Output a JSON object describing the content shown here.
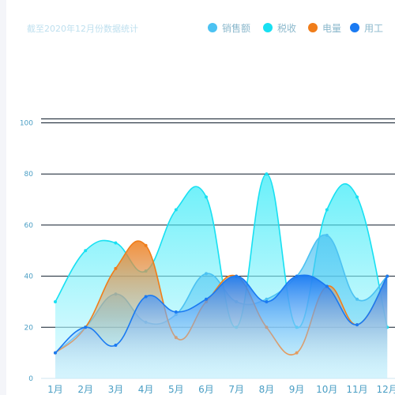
{
  "chart_data": {
    "type": "area",
    "subtitle": "截至2020年12月份数据统计",
    "categories": [
      "1月",
      "2月",
      "3月",
      "4月",
      "5月",
      "6月",
      "7月",
      "8月",
      "9月",
      "10月",
      "11月",
      "12月"
    ],
    "ylim": [
      0,
      100
    ],
    "yticks": [
      0,
      20,
      40,
      60,
      80,
      100
    ],
    "grid": true,
    "legend_position": "top-right",
    "series": [
      {
        "name": "销售额",
        "color": "#4cc2f2",
        "values": [
          10,
          20,
          33,
          22,
          25,
          41,
          30,
          31,
          40,
          56,
          31,
          40
        ]
      },
      {
        "name": "税收",
        "color": "#18e0f2",
        "values": [
          30,
          50,
          53,
          42,
          66,
          71,
          20,
          80,
          20,
          66,
          71,
          20
        ]
      },
      {
        "name": "电量",
        "color": "#f07d1a",
        "values": [
          10,
          20,
          43,
          52,
          16,
          30,
          40,
          20,
          10,
          36,
          21,
          40
        ]
      },
      {
        "name": "用工",
        "color": "#1a7af2",
        "values": [
          10,
          20,
          13,
          32,
          26,
          31,
          40,
          30,
          40,
          36,
          21,
          40
        ]
      }
    ]
  }
}
